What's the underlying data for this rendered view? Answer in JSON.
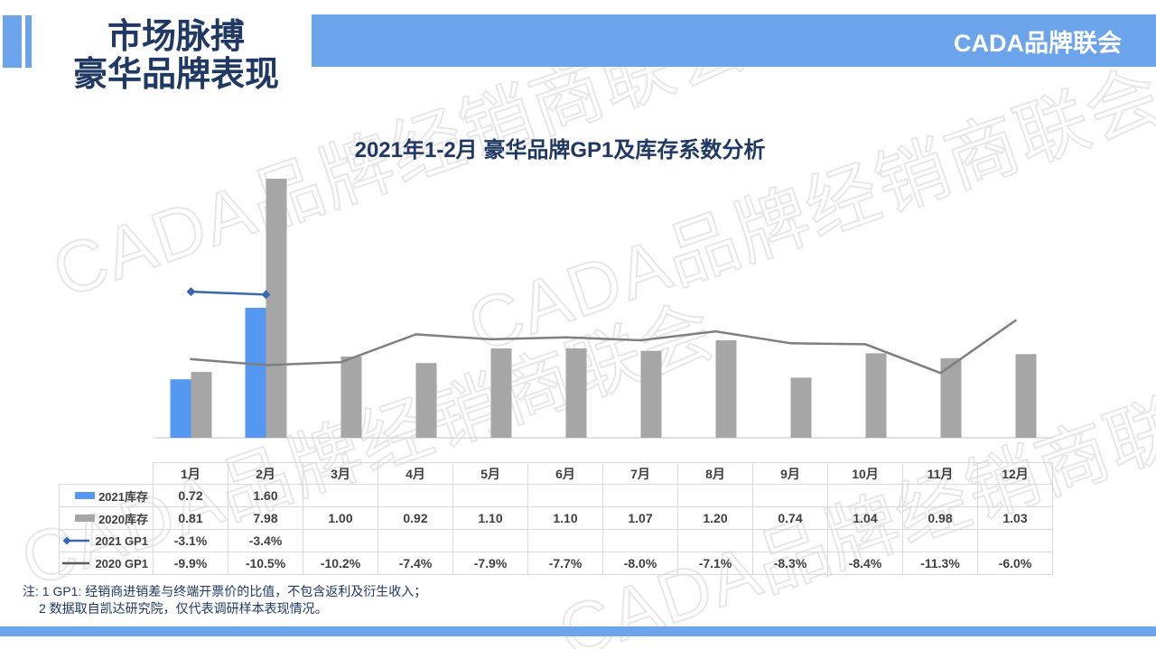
{
  "slide": {
    "header": {
      "title_line1": "市场脉搏",
      "title_line2": "豪华品牌表现",
      "org": "CADA品牌联会"
    },
    "watermark_text": "CADA品牌经销商联会",
    "notes": {
      "line1": "注: 1 GP1: 经销商进销差与终端开票价的比值，不包含返利及衍生收入；",
      "line2": "2 数据取自凯达研究院，仅代表调研样本表现情况。"
    },
    "colors": {
      "accent_blue": "#6ca4ec",
      "bar_blue": "#5598f2",
      "bar_gray": "#a6a6a6",
      "line_blue": "#3a67b1",
      "line_gray": "#7f7f7f",
      "navy_text": "#1f3864",
      "table_border": "#d9d9d9"
    }
  },
  "chart_data": {
    "type": "combo-bar-line",
    "title": "2021年1-2月 豪华品牌GP1及库存系数分析",
    "categories": [
      "1月",
      "2月",
      "3月",
      "4月",
      "5月",
      "6月",
      "7月",
      "8月",
      "9月",
      "10月",
      "11月",
      "12月"
    ],
    "series": [
      {
        "name": "2021库存",
        "chart_type": "bar",
        "axis": "left",
        "color": "#5598f2",
        "values": [
          0.72,
          1.6,
          null,
          null,
          null,
          null,
          null,
          null,
          null,
          null,
          null,
          null
        ]
      },
      {
        "name": "2020库存",
        "chart_type": "bar",
        "axis": "left",
        "color": "#a6a6a6",
        "values": [
          0.81,
          7.98,
          1.0,
          0.92,
          1.1,
          1.1,
          1.07,
          1.2,
          0.74,
          1.04,
          0.98,
          1.03
        ]
      },
      {
        "name": "2021 GP1",
        "chart_type": "line",
        "axis": "right",
        "unit": "%",
        "marker": "diamond",
        "color": "#3a67b1",
        "values": [
          -3.1,
          -3.4,
          null,
          null,
          null,
          null,
          null,
          null,
          null,
          null,
          null,
          null
        ]
      },
      {
        "name": "2020 GP1",
        "chart_type": "line",
        "axis": "right",
        "unit": "%",
        "marker": "none",
        "color": "#7f7f7f",
        "values": [
          -9.9,
          -10.5,
          -10.2,
          -7.4,
          -7.9,
          -7.7,
          -8.0,
          -7.1,
          -8.3,
          -8.4,
          -11.3,
          -6.0
        ]
      }
    ],
    "axes": {
      "y_left_visible": false,
      "y_right_visible": false,
      "gridlines": false,
      "x_axis_line": true
    },
    "legend_position": "table-row-labels"
  },
  "table": {
    "corner": "",
    "columns": [
      "1月",
      "2月",
      "3月",
      "4月",
      "5月",
      "6月",
      "7月",
      "8月",
      "9月",
      "10月",
      "11月",
      "12月"
    ],
    "rows": [
      {
        "label": "2021库存",
        "legend": "bar",
        "color": "#5598f2",
        "cells": [
          "0.72",
          "1.60",
          "",
          "",
          "",
          "",
          "",
          "",
          "",
          "",
          "",
          ""
        ]
      },
      {
        "label": "2020库存",
        "legend": "bar",
        "color": "#a6a6a6",
        "cells": [
          "0.81",
          "7.98",
          "1.00",
          "0.92",
          "1.10",
          "1.10",
          "1.07",
          "1.20",
          "0.74",
          "1.04",
          "0.98",
          "1.03"
        ]
      },
      {
        "label": "2021 GP1",
        "legend": "line-diamond",
        "color": "#3a67b1",
        "cells": [
          "-3.1%",
          "-3.4%",
          "",
          "",
          "",
          "",
          "",
          "",
          "",
          "",
          "",
          ""
        ]
      },
      {
        "label": "2020 GP1",
        "legend": "line",
        "color": "#595959",
        "cells": [
          "-9.9%",
          "-10.5%",
          "-10.2%",
          "-7.4%",
          "-7.9%",
          "-7.7%",
          "-8.0%",
          "-7.1%",
          "-8.3%",
          "-8.4%",
          "-11.3%",
          "-6.0%"
        ]
      }
    ]
  }
}
